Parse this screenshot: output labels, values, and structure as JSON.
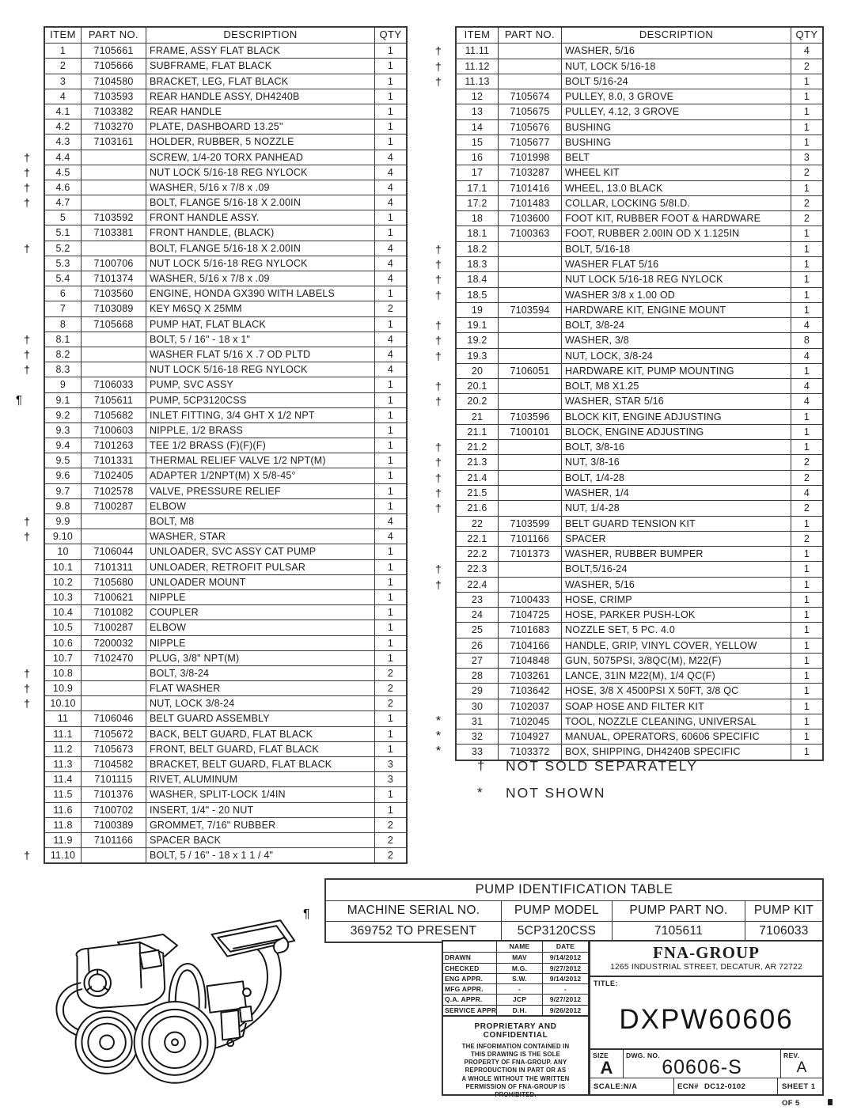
{
  "parts_headers": [
    "ITEM",
    "PART NO.",
    "DESCRIPTION",
    "QTY"
  ],
  "left_table": {
    "rows": [
      [
        "1",
        "7105661",
        "FRAME, ASSY FLAT BLACK",
        "1",
        ""
      ],
      [
        "2",
        "7105666",
        "SUBFRAME, FLAT BLACK",
        "1",
        ""
      ],
      [
        "3",
        "7104580",
        "BRACKET, LEG, FLAT BLACK",
        "1",
        ""
      ],
      [
        "4",
        "7103593",
        "REAR HANDLE ASSY, DH4240B",
        "1",
        ""
      ],
      [
        "4.1",
        "7103382",
        "REAR HANDLE",
        "1",
        ""
      ],
      [
        "4.2",
        "7103270",
        "PLATE, DASHBOARD 13.25\"",
        "1",
        ""
      ],
      [
        "4.3",
        "7103161",
        "HOLDER, RUBBER, 5 NOZZLE",
        "1",
        ""
      ],
      [
        "4.4",
        "",
        "SCREW, 1/4-20 TORX PANHEAD",
        "4",
        "†"
      ],
      [
        "4.5",
        "",
        "NUT LOCK 5/16-18 REG NYLOCK",
        "4",
        "†"
      ],
      [
        "4.6",
        "",
        "WASHER, 5/16 x 7/8 x .09",
        "4",
        "†"
      ],
      [
        "4.7",
        "",
        "BOLT, FLANGE 5/16-18 X 2.00IN",
        "4",
        "†"
      ],
      [
        "5",
        "7103592",
        "FRONT HANDLE ASSY.",
        "1",
        ""
      ],
      [
        "5.1",
        "7103381",
        "FRONT HANDLE, (BLACK)",
        "1",
        ""
      ],
      [
        "5.2",
        "",
        "BOLT, FLANGE 5/16-18 X 2.00IN",
        "4",
        "†"
      ],
      [
        "5.3",
        "7100706",
        "NUT LOCK 5/16-18 REG NYLOCK",
        "4",
        ""
      ],
      [
        "5.4",
        "7101374",
        "WASHER, 5/16 x 7/8 x .09",
        "4",
        ""
      ],
      [
        "6",
        "7103560",
        "ENGINE, HONDA GX390 WITH LABELS",
        "1",
        ""
      ],
      [
        "7",
        "7103089",
        "KEY M6SQ X 25MM",
        "2",
        ""
      ],
      [
        "8",
        "7105668",
        "PUMP HAT, FLAT BLACK",
        "1",
        ""
      ],
      [
        "8.1",
        "",
        "BOLT, 5 / 16\" - 18 x 1\"",
        "4",
        "†"
      ],
      [
        "8.2",
        "",
        "WASHER FLAT 5/16 X .7 OD PLTD",
        "4",
        "†"
      ],
      [
        "8.3",
        "",
        "NUT LOCK 5/16-18 REG NYLOCK",
        "4",
        "†"
      ],
      [
        "9",
        "7106033",
        "PUMP, SVC ASSY",
        "1",
        ""
      ],
      [
        "9.1",
        "7105611",
        "PUMP, 5CP3120CSS",
        "1",
        "¶"
      ],
      [
        "9.2",
        "7105682",
        "INLET FITTING, 3/4 GHT X 1/2 NPT",
        "1",
        ""
      ],
      [
        "9.3",
        "7100603",
        "NIPPLE, 1/2 BRASS",
        "1",
        ""
      ],
      [
        "9.4",
        "7101263",
        "TEE 1/2 BRASS (F)(F)(F)",
        "1",
        ""
      ],
      [
        "9.5",
        "7101331",
        "THERMAL RELIEF VALVE 1/2 NPT(M)",
        "1",
        ""
      ],
      [
        "9.6",
        "7102405",
        "ADAPTER 1/2NPT(M) X 5/8-45°",
        "1",
        ""
      ],
      [
        "9.7",
        "7102578",
        "VALVE, PRESSURE RELIEF",
        "1",
        ""
      ],
      [
        "9.8",
        "7100287",
        "ELBOW",
        "1",
        ""
      ],
      [
        "9.9",
        "",
        "BOLT, M8",
        "4",
        "†"
      ],
      [
        "9.10",
        "",
        "WASHER, STAR",
        "4",
        "†"
      ],
      [
        "10",
        "7106044",
        "UNLOADER, SVC ASSY CAT PUMP",
        "1",
        ""
      ],
      [
        "10.1",
        "7101311",
        "UNLOADER, RETROFIT PULSAR",
        "1",
        ""
      ],
      [
        "10.2",
        "7105680",
        "UNLOADER MOUNT",
        "1",
        ""
      ],
      [
        "10.3",
        "7100621",
        "NIPPLE",
        "1",
        ""
      ],
      [
        "10.4",
        "7101082",
        "COUPLER",
        "1",
        ""
      ],
      [
        "10.5",
        "7100287",
        "ELBOW",
        "1",
        ""
      ],
      [
        "10.6",
        "7200032",
        "NIPPLE",
        "1",
        ""
      ],
      [
        "10.7",
        "7102470",
        "PLUG, 3/8\" NPT(M)",
        "1",
        ""
      ],
      [
        "10.8",
        "",
        "BOLT, 3/8-24",
        "2",
        "†"
      ],
      [
        "10.9",
        "",
        "FLAT WASHER",
        "2",
        "†"
      ],
      [
        "10.10",
        "",
        "NUT, LOCK 3/8-24",
        "2",
        "†"
      ],
      [
        "11",
        "7106046",
        "BELT GUARD ASSEMBLY",
        "1",
        ""
      ],
      [
        "11.1",
        "7105672",
        "BACK, BELT GUARD, FLAT BLACK",
        "1",
        ""
      ],
      [
        "11.2",
        "7105673",
        "FRONT, BELT GUARD, FLAT BLACK",
        "1",
        ""
      ],
      [
        "11.3",
        "7104582",
        "BRACKET, BELT GUARD, FLAT BLACK",
        "3",
        ""
      ],
      [
        "11.4",
        "7101115",
        "RIVET, ALUMINUM",
        "3",
        ""
      ],
      [
        "11.5",
        "7101376",
        "WASHER, SPLIT-LOCK 1/4IN",
        "1",
        ""
      ],
      [
        "11.6",
        "7100702",
        "INSERT, 1/4\" - 20 NUT",
        "1",
        ""
      ],
      [
        "11.8",
        "7100389",
        "GROMMET, 7/16\" RUBBER",
        "2",
        ""
      ],
      [
        "11.9",
        "7101166",
        "SPACER BACK",
        "2",
        ""
      ],
      [
        "11.10",
        "",
        "BOLT, 5 / 16\" - 18 x 1 1 / 4\"",
        "2",
        "†"
      ]
    ]
  },
  "right_table": {
    "rows": [
      [
        "11.11",
        "",
        "WASHER, 5/16",
        "4",
        "†"
      ],
      [
        "11.12",
        "",
        "NUT, LOCK 5/16-18",
        "2",
        "†"
      ],
      [
        "11.13",
        "",
        "BOLT 5/16-24",
        "1",
        "†"
      ],
      [
        "12",
        "7105674",
        "PULLEY, 8.0, 3 GROVE",
        "1",
        ""
      ],
      [
        "13",
        "7105675",
        "PULLEY, 4.12, 3 GROVE",
        "1",
        ""
      ],
      [
        "14",
        "7105676",
        "BUSHING",
        "1",
        ""
      ],
      [
        "15",
        "7105677",
        "BUSHING",
        "1",
        ""
      ],
      [
        "16",
        "7101998",
        "BELT",
        "3",
        ""
      ],
      [
        "17",
        "7103287",
        "WHEEL KIT",
        "2",
        ""
      ],
      [
        "17.1",
        "7101416",
        "WHEEL, 13.0 BLACK",
        "1",
        ""
      ],
      [
        "17.2",
        "7101483",
        "COLLAR, LOCKING 5/8I.D.",
        "2",
        ""
      ],
      [
        "18",
        "7103600",
        "FOOT KIT, RUBBER FOOT & HARDWARE",
        "2",
        ""
      ],
      [
        "18.1",
        "7100363",
        "FOOT, RUBBER 2.00IN OD X 1.125IN",
        "1",
        ""
      ],
      [
        "18.2",
        "",
        "BOLT, 5/16-18",
        "1",
        "†"
      ],
      [
        "18.3",
        "",
        "WASHER FLAT 5/16",
        "1",
        "†"
      ],
      [
        "18.4",
        "",
        "NUT LOCK 5/16-18 REG NYLOCK",
        "1",
        "†"
      ],
      [
        "18.5",
        "",
        "WASHER  3/8 x 1.00 OD",
        "1",
        "†"
      ],
      [
        "19",
        "7103594",
        "HARDWARE KIT, ENGINE MOUNT",
        "1",
        ""
      ],
      [
        "19.1",
        "",
        "BOLT, 3/8-24",
        "4",
        "†"
      ],
      [
        "19.2",
        "",
        "WASHER, 3/8",
        "8",
        "†"
      ],
      [
        "19.3",
        "",
        "NUT, LOCK, 3/8-24",
        "4",
        "†"
      ],
      [
        "20",
        "7106051",
        "HARDWARE KIT, PUMP MOUNTING",
        "1",
        ""
      ],
      [
        "20.1",
        "",
        "BOLT, M8 X1.25",
        "4",
        "†"
      ],
      [
        "20.2",
        "",
        "WASHER, STAR 5/16",
        "4",
        "†"
      ],
      [
        "21",
        "7103596",
        "BLOCK KIT, ENGINE ADJUSTING",
        "1",
        ""
      ],
      [
        "21.1",
        "7100101",
        "BLOCK, ENGINE ADJUSTING",
        "1",
        ""
      ],
      [
        "21.2",
        "",
        "BOLT, 3/8-16",
        "1",
        "†"
      ],
      [
        "21.3",
        "",
        "NUT, 3/8-16",
        "2",
        "†"
      ],
      [
        "21.4",
        "",
        "BOLT, 1/4-28",
        "2",
        "†"
      ],
      [
        "21.5",
        "",
        "WASHER, 1/4",
        "4",
        "†"
      ],
      [
        "21.6",
        "",
        "NUT, 1/4-28",
        "2",
        "†"
      ],
      [
        "22",
        "7103599",
        "BELT GUARD TENSION KIT",
        "1",
        ""
      ],
      [
        "22.1",
        "7101166",
        "SPACER",
        "2",
        ""
      ],
      [
        "22.2",
        "7101373",
        "WASHER, RUBBER BUMPER",
        "1",
        ""
      ],
      [
        "22.3",
        "",
        "BOLT,5/16-24",
        "1",
        "†"
      ],
      [
        "22.4",
        "",
        "WASHER, 5/16",
        "1",
        "†"
      ],
      [
        "23",
        "7100433",
        "HOSE, CRIMP",
        "1",
        ""
      ],
      [
        "24",
        "7104725",
        "HOSE, PARKER PUSH-LOK",
        "1",
        ""
      ],
      [
        "25",
        "7101683",
        "NOZZLE SET, 5 PC. 4.0",
        "1",
        ""
      ],
      [
        "26",
        "7104166",
        "HANDLE, GRIP, VINYL COVER, YELLOW",
        "1",
        ""
      ],
      [
        "27",
        "7104848",
        "GUN, 5075PSI, 3/8QC(M), M22(F)",
        "1",
        ""
      ],
      [
        "28",
        "7103261",
        "LANCE, 31IN M22(M), 1/4 QC(F)",
        "1",
        ""
      ],
      [
        "29",
        "7103642",
        "HOSE, 3/8 X 4500PSI X 50FT, 3/8 QC",
        "1",
        ""
      ],
      [
        "30",
        "7102037",
        "SOAP HOSE AND FILTER KIT",
        "1",
        ""
      ],
      [
        "31",
        "7102045",
        "TOOL, NOZZLE CLEANING, UNIVERSAL",
        "1",
        "*"
      ],
      [
        "32",
        "7104927",
        "MANUAL, OPERATORS, 60606 SPECIFIC",
        "1",
        "*"
      ],
      [
        "33",
        "7103372",
        "BOX, SHIPPING, DH4240B SPECIFIC",
        "1",
        "*"
      ]
    ]
  },
  "notes": [
    {
      "symbol": "†",
      "text": "NOT SOLD SEPARATELY"
    },
    {
      "symbol": "*",
      "text": "NOT SHOWN"
    }
  ],
  "pump_table": {
    "marker": "¶",
    "title": "PUMP IDENTIFICATION TABLE",
    "headers": [
      "MACHINE SERIAL NO.",
      "PUMP MODEL",
      "PUMP PART NO.",
      "PUMP KIT"
    ],
    "values": [
      "369752 TO PRESENT",
      "5CP3120CSS",
      "7105611",
      "7106033"
    ]
  },
  "title_block": {
    "approvals": {
      "headers": [
        "",
        "NAME",
        "DATE"
      ],
      "rows": [
        [
          "DRAWN",
          "MAV",
          "9/14/2012"
        ],
        [
          "CHECKED",
          "M.G.",
          "9/27/2012"
        ],
        [
          "ENG APPR.",
          "S.W.",
          "9/14/2012"
        ],
        [
          "MFG APPR.",
          "-",
          "-"
        ],
        [
          "Q.A. APPR.",
          "JCP",
          "9/27/2012"
        ],
        [
          "SERVICE APPR.",
          "D.H.",
          "9/26/2012"
        ]
      ]
    },
    "proprietary_title": "PROPRIETARY AND CONFIDENTIAL",
    "proprietary_lines": [
      "THE INFORMATION CONTAINED IN",
      "THIS DRAWING IS THE SOLE",
      "PROPERTY OF FNA-GROUP.  ANY",
      "REPRODUCTION IN PART OR AS",
      "A WHOLE WITHOUT THE WRITTEN",
      "PERMISSION OF FNA-GROUP IS",
      "PROHIBITED."
    ],
    "company": "FNA-GROUP",
    "address": "1265 INDUSTRIAL STREET, DECATUR, AR 72722",
    "title_label": "TITLE:",
    "title_value": "DXPW60606",
    "size_label": "SIZE",
    "size_value": "A",
    "dwg_label": "DWG. NO.",
    "dwg_value": "60606-S",
    "rev_label": "REV.",
    "rev_value": "A",
    "scale_label": "SCALE:",
    "scale_value": "N/A",
    "ecn_label": "ECN#",
    "ecn_value": "DC12-0102",
    "sheet": "SHEET 1 OF 5"
  }
}
